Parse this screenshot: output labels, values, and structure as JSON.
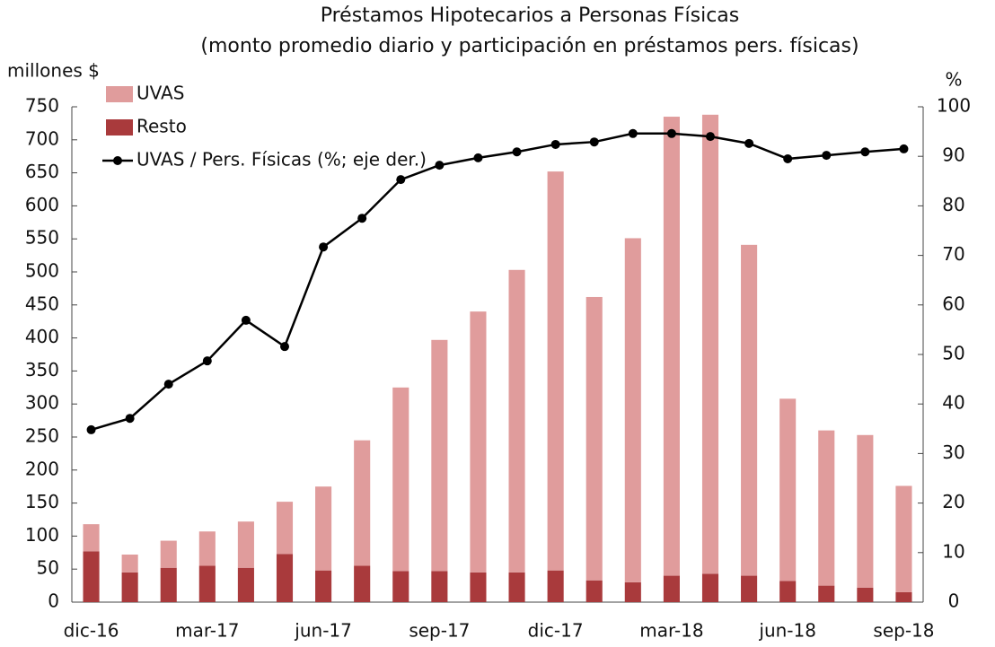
{
  "chart_data": {
    "type": "bar",
    "title": "Préstamos Hipotecarios a Personas Físicas",
    "subtitle": "(monto promedio diario y participación en préstamos pers. físicas)",
    "y_label": "millones $",
    "y2_label": "%",
    "categories": [
      "dic-16",
      null,
      null,
      "mar-17",
      null,
      null,
      "jun-17",
      null,
      null,
      "sep-17",
      null,
      null,
      "dic-17",
      null,
      null,
      "mar-18",
      null,
      null,
      "jun-18",
      null,
      null,
      "sep-18"
    ],
    "series": [
      {
        "name": "UVAS",
        "type": "bar",
        "color": "#e09c9c",
        "values": [
          41,
          27,
          41,
          52,
          70,
          79,
          127,
          190,
          278,
          350,
          395,
          458,
          604,
          429,
          521,
          695,
          695,
          501,
          276,
          235,
          231,
          161
        ]
      },
      {
        "name": "Resto",
        "type": "bar",
        "color": "#a93a3c",
        "values": [
          77,
          45,
          52,
          55,
          52,
          73,
          48,
          55,
          47,
          47,
          45,
          45,
          48,
          33,
          30,
          40,
          43,
          40,
          32,
          25,
          22,
          15
        ]
      },
      {
        "name": "UVAS / Pers. Físicas (%; eje der.)",
        "type": "line",
        "axis": "y2",
        "color": "#000000",
        "values": [
          34.8,
          37.1,
          44,
          48.7,
          56.9,
          51.6,
          71.7,
          77.5,
          85.3,
          88.2,
          89.7,
          90.9,
          92.4,
          92.9,
          94.6,
          94.6,
          94,
          92.6,
          89.5,
          90.2,
          90.9,
          91.5
        ]
      }
    ],
    "ylim": [
      0,
      750
    ],
    "yticks": [
      0,
      50,
      100,
      150,
      200,
      250,
      300,
      350,
      400,
      450,
      500,
      550,
      600,
      650,
      700,
      750
    ],
    "y2lim": [
      0,
      100
    ],
    "y2ticks": [
      0,
      10,
      20,
      30,
      40,
      50,
      60,
      70,
      80,
      90,
      100
    ],
    "stacked": true,
    "legend": "top-left"
  }
}
